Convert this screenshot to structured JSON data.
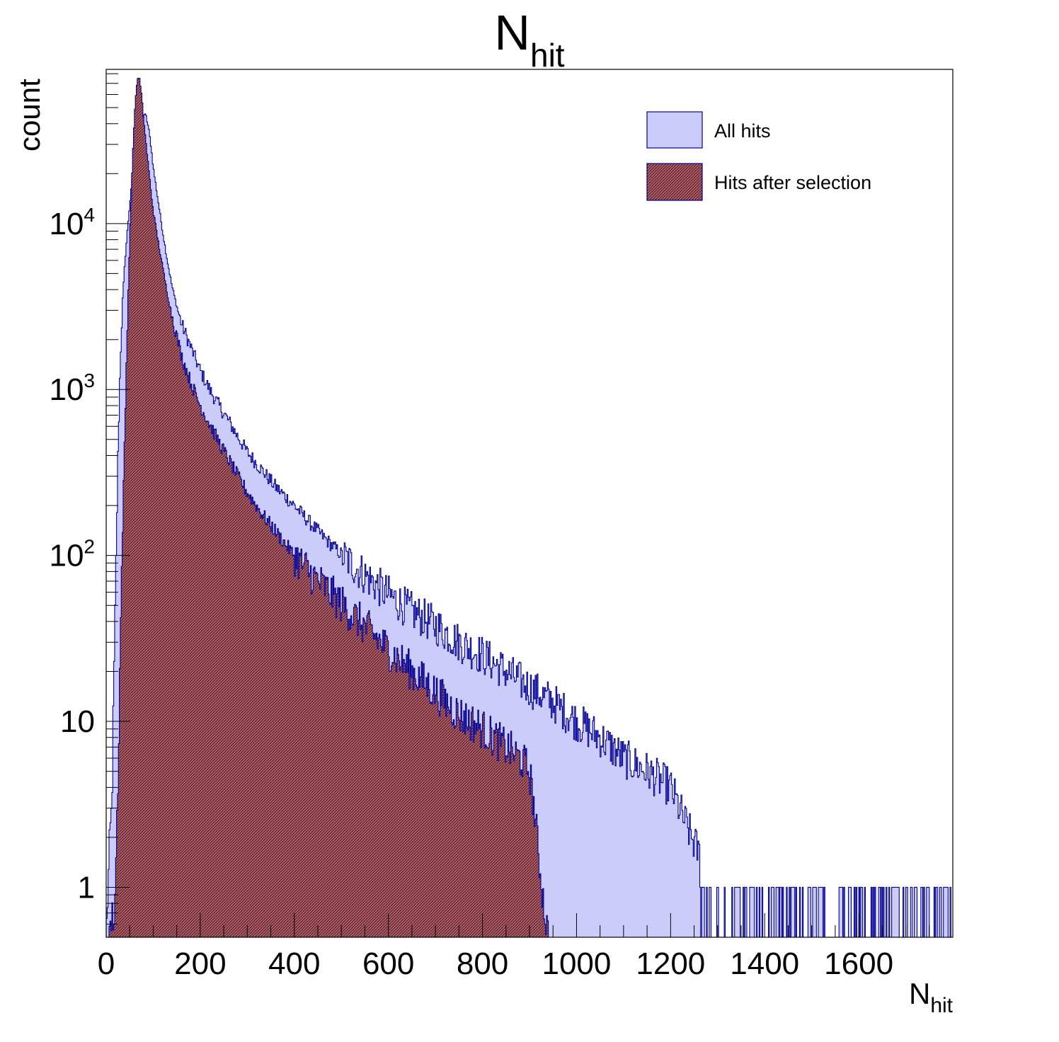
{
  "chart_data": {
    "type": "histogram",
    "title": {
      "main": "N",
      "sub": "hit"
    },
    "xlabel": {
      "main": "N",
      "sub": "hit"
    },
    "ylabel": "count",
    "xlim": [
      0,
      1800
    ],
    "ylim": [
      0.5,
      85000
    ],
    "yscale": "log",
    "grid": false,
    "legend_position": "top-right",
    "x_ticks": [
      "0",
      "200",
      "400",
      "600",
      "800",
      "1000",
      "1200",
      "1400",
      "1600"
    ],
    "y_ticks": [
      {
        "base": "1",
        "exp": ""
      },
      {
        "base": "10",
        "exp": ""
      },
      {
        "base": "10",
        "exp": "2"
      },
      {
        "base": "10",
        "exp": "3"
      },
      {
        "base": "10",
        "exp": "4"
      }
    ],
    "series": [
      {
        "name": "All hits",
        "fill": "#ccccfa",
        "line": "#000099",
        "pattern": "solid",
        "points": [
          [
            0,
            0.5
          ],
          [
            4,
            1
          ],
          [
            8,
            2
          ],
          [
            12,
            3
          ],
          [
            15,
            10
          ],
          [
            20,
            60
          ],
          [
            25,
            400
          ],
          [
            30,
            1500
          ],
          [
            35,
            3500
          ],
          [
            40,
            6000
          ],
          [
            45,
            9000
          ],
          [
            50,
            13000
          ],
          [
            55,
            18000
          ],
          [
            60,
            25000
          ],
          [
            65,
            33000
          ],
          [
            70,
            40000
          ],
          [
            75,
            44000
          ],
          [
            80,
            46000
          ],
          [
            85,
            44000
          ],
          [
            90,
            38000
          ],
          [
            95,
            30000
          ],
          [
            100,
            22000
          ],
          [
            110,
            14000
          ],
          [
            120,
            9000
          ],
          [
            130,
            6000
          ],
          [
            140,
            4200
          ],
          [
            150,
            3200
          ],
          [
            160,
            2500
          ],
          [
            180,
            1800
          ],
          [
            200,
            1300
          ],
          [
            220,
            1000
          ],
          [
            240,
            800
          ],
          [
            260,
            650
          ],
          [
            280,
            520
          ],
          [
            300,
            420
          ],
          [
            330,
            330
          ],
          [
            360,
            260
          ],
          [
            400,
            200
          ],
          [
            440,
            150
          ],
          [
            480,
            115
          ],
          [
            520,
            90
          ],
          [
            560,
            72
          ],
          [
            600,
            58
          ],
          [
            650,
            46
          ],
          [
            700,
            38
          ],
          [
            750,
            30
          ],
          [
            800,
            25
          ],
          [
            850,
            20
          ],
          [
            900,
            16
          ],
          [
            950,
            13
          ],
          [
            1000,
            10
          ],
          [
            1050,
            8
          ],
          [
            1100,
            6
          ],
          [
            1150,
            5
          ],
          [
            1200,
            4
          ],
          [
            1230,
            2.5
          ],
          [
            1260,
            1.6
          ],
          [
            1290,
            1.1
          ],
          [
            1330,
            1
          ],
          [
            1400,
            0.9
          ],
          [
            1500,
            0.8
          ],
          [
            1600,
            0.7
          ],
          [
            1700,
            0.7
          ],
          [
            1800,
            0.6
          ]
        ]
      },
      {
        "name": "Hits after selection",
        "fill": "#a0505a",
        "line": "#000099",
        "pattern": "hatched",
        "points": [
          [
            0,
            0.5
          ],
          [
            18,
            0.7
          ],
          [
            22,
            2
          ],
          [
            26,
            6
          ],
          [
            30,
            30
          ],
          [
            35,
            150
          ],
          [
            40,
            600
          ],
          [
            45,
            2500
          ],
          [
            50,
            8000
          ],
          [
            55,
            20000
          ],
          [
            60,
            45000
          ],
          [
            65,
            70000
          ],
          [
            70,
            78000
          ],
          [
            75,
            60000
          ],
          [
            80,
            42000
          ],
          [
            85,
            30000
          ],
          [
            90,
            22000
          ],
          [
            95,
            16000
          ],
          [
            100,
            12000
          ],
          [
            110,
            8000
          ],
          [
            120,
            5500
          ],
          [
            130,
            3800
          ],
          [
            140,
            2800
          ],
          [
            150,
            2100
          ],
          [
            160,
            1600
          ],
          [
            180,
            1100
          ],
          [
            200,
            800
          ],
          [
            220,
            620
          ],
          [
            240,
            480
          ],
          [
            260,
            380
          ],
          [
            280,
            300
          ],
          [
            300,
            240
          ],
          [
            330,
            180
          ],
          [
            360,
            140
          ],
          [
            400,
            100
          ],
          [
            440,
            75
          ],
          [
            480,
            58
          ],
          [
            520,
            45
          ],
          [
            560,
            35
          ],
          [
            600,
            27
          ],
          [
            650,
            20
          ],
          [
            700,
            15
          ],
          [
            750,
            11
          ],
          [
            800,
            9
          ],
          [
            850,
            7
          ],
          [
            880,
            6
          ],
          [
            900,
            5
          ],
          [
            910,
            3
          ],
          [
            920,
            1.5
          ],
          [
            930,
            0.8
          ],
          [
            940,
            0.5
          ]
        ]
      }
    ]
  }
}
